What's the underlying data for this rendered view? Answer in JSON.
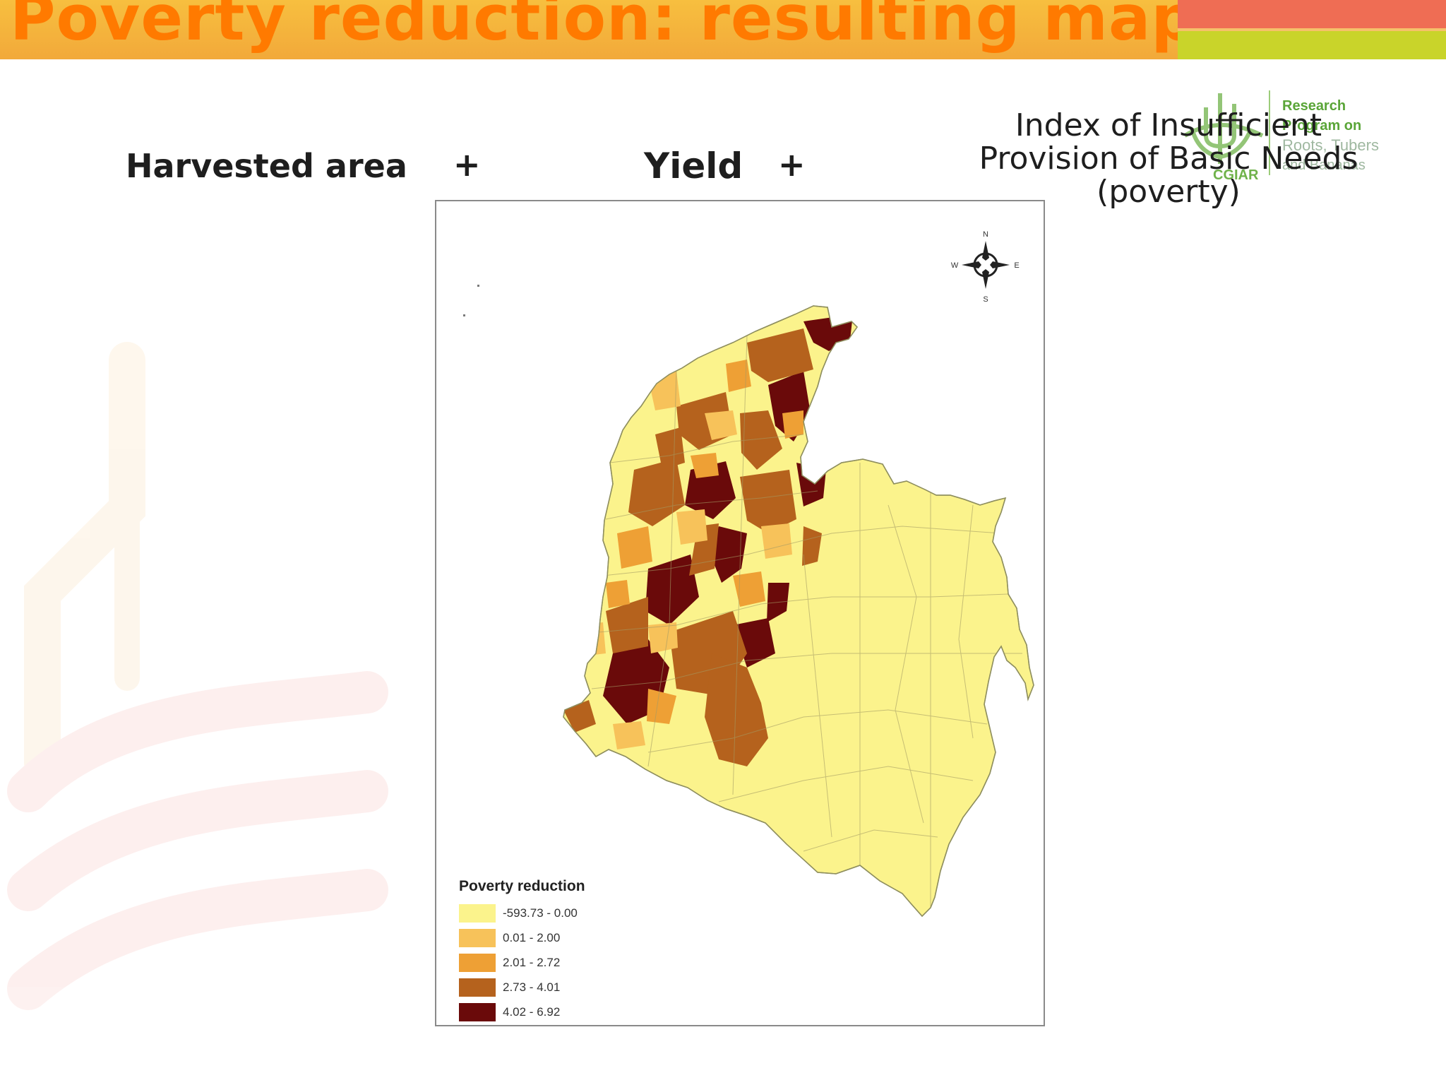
{
  "header": {
    "title": "Poverty reduction: resulting map"
  },
  "formula": {
    "term1": "Harvested area",
    "plus1": "+",
    "term2": "Yield",
    "plus2": "+",
    "term3_lines": [
      "Index of Insufficient",
      "Provision of Basic Needs",
      "(poverty)"
    ]
  },
  "logo": {
    "lines": [
      "Research",
      "Program on",
      "Roots, Tubers",
      "and Bananas"
    ],
    "sub": "CGIAR"
  },
  "map": {
    "compass": {
      "n": "N",
      "s": "S",
      "e": "E",
      "w": "W"
    },
    "legend": {
      "title": "Poverty reduction",
      "items": [
        {
          "label": "-593.73 - 0.00",
          "color": "#fbf38c"
        },
        {
          "label": "0.01 - 2.00",
          "color": "#f7c25a"
        },
        {
          "label": "2.01 - 2.72",
          "color": "#eea035"
        },
        {
          "label": "2.73 - 4.01",
          "color": "#b5621d"
        },
        {
          "label": "4.02 - 6.92",
          "color": "#6a0a0a"
        }
      ]
    }
  },
  "colors": {
    "title_text": "#ff7a00",
    "title_bar": "#f6b63d",
    "stripe_red": "#ef6d54",
    "stripe_green": "#c9d42a",
    "logo_green": "#5aa538"
  }
}
